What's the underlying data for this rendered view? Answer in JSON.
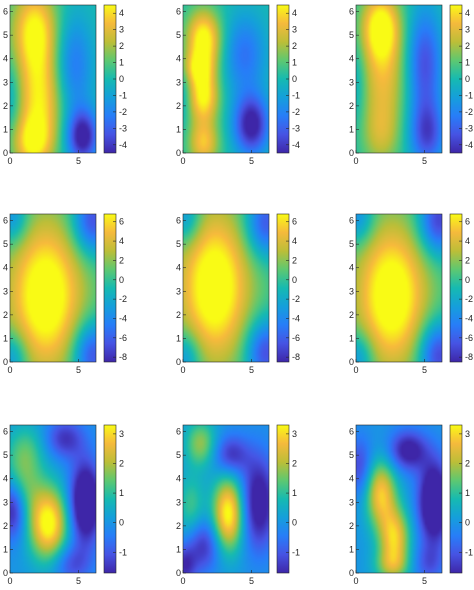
{
  "chart_data": [
    {
      "type": "heatmap",
      "row": 0,
      "col": 0,
      "title": "",
      "xlabel": "",
      "ylabel": "",
      "xlim": [
        0,
        6.28
      ],
      "ylim": [
        0,
        6.28
      ],
      "xticks": [
        "0",
        "5"
      ],
      "yticks": [
        "0",
        "1",
        "2",
        "3",
        "4",
        "5",
        "6"
      ],
      "clim": [
        -4.5,
        4.5
      ],
      "colorbar_ticks": [
        "-4",
        "-3",
        "-2",
        "-1",
        "0",
        "1",
        "2",
        "3",
        "4"
      ],
      "blobs": [
        {
          "x": 1.8,
          "y": 5.2,
          "sx": 1.2,
          "sy": 1.3,
          "a": 4.5
        },
        {
          "x": 2.2,
          "y": 2.2,
          "sx": 1.2,
          "sy": 1.5,
          "a": 4.0
        },
        {
          "x": 1.6,
          "y": 0.4,
          "sx": 1.0,
          "sy": 0.8,
          "a": 3.5
        },
        {
          "x": 5.3,
          "y": 0.7,
          "sx": 0.8,
          "sy": 0.8,
          "a": -5.0
        },
        {
          "x": 4.6,
          "y": 3.7,
          "sx": 1.0,
          "sy": 1.5,
          "a": -2.5
        },
        {
          "x": 0.1,
          "y": 2.4,
          "sx": 0.5,
          "sy": 1.0,
          "a": -1.2
        }
      ]
    },
    {
      "type": "heatmap",
      "row": 0,
      "col": 1,
      "title": "",
      "xlabel": "",
      "ylabel": "",
      "xlim": [
        0,
        6.28
      ],
      "ylim": [
        0,
        6.28
      ],
      "xticks": [
        "0",
        "5"
      ],
      "yticks": [
        "0",
        "1",
        "2",
        "3",
        "4",
        "5",
        "6"
      ],
      "clim": [
        -4.5,
        4.5
      ],
      "colorbar_ticks": [
        "-4",
        "-3",
        "-2",
        "-1",
        "0",
        "1",
        "2",
        "3",
        "4"
      ],
      "blobs": [
        {
          "x": 1.5,
          "y": 4.8,
          "sx": 0.9,
          "sy": 0.9,
          "a": 5.0
        },
        {
          "x": 1.5,
          "y": 2.4,
          "sx": 0.8,
          "sy": 0.8,
          "a": 4.5
        },
        {
          "x": 1.5,
          "y": 0.4,
          "sx": 0.8,
          "sy": 0.7,
          "a": 3.5
        },
        {
          "x": 1.0,
          "y": 3.6,
          "sx": 0.8,
          "sy": 0.5,
          "a": 2.5
        },
        {
          "x": 5.0,
          "y": 1.2,
          "sx": 0.9,
          "sy": 0.9,
          "a": -5.0
        },
        {
          "x": 4.5,
          "y": 4.2,
          "sx": 1.1,
          "sy": 1.2,
          "a": -2.5
        },
        {
          "x": 0.0,
          "y": 2.6,
          "sx": 0.4,
          "sy": 1.0,
          "a": -1.0
        }
      ]
    },
    {
      "type": "heatmap",
      "row": 0,
      "col": 2,
      "title": "",
      "xlabel": "",
      "ylabel": "",
      "xlim": [
        0,
        6.28
      ],
      "ylim": [
        0,
        6.28
      ],
      "xticks": [
        "0",
        "5"
      ],
      "yticks": [
        "0",
        "1",
        "2",
        "3",
        "4",
        "5",
        "6"
      ],
      "clim": [
        -4.5,
        4.5
      ],
      "colorbar_ticks": [
        "-4",
        "-3",
        "-2",
        "-1",
        "0",
        "1",
        "2",
        "3",
        "4"
      ],
      "blobs": [
        {
          "x": 1.8,
          "y": 5.4,
          "sx": 1.0,
          "sy": 1.0,
          "a": 4.5
        },
        {
          "x": 2.0,
          "y": 3.2,
          "sx": 1.2,
          "sy": 1.6,
          "a": 3.0
        },
        {
          "x": 1.8,
          "y": 0.7,
          "sx": 1.0,
          "sy": 1.0,
          "a": 2.0
        },
        {
          "x": 5.0,
          "y": 3.8,
          "sx": 0.9,
          "sy": 1.6,
          "a": -3.5
        },
        {
          "x": 5.2,
          "y": 0.8,
          "sx": 0.9,
          "sy": 1.0,
          "a": -3.5
        },
        {
          "x": 0.1,
          "y": 3.0,
          "sx": 0.5,
          "sy": 1.2,
          "a": -1.0
        }
      ]
    },
    {
      "type": "heatmap",
      "row": 1,
      "col": 0,
      "title": "",
      "xlabel": "",
      "ylabel": "",
      "xlim": [
        0,
        6.28
      ],
      "ylim": [
        0,
        6.28
      ],
      "xticks": [
        "0",
        "5"
      ],
      "yticks": [
        "0",
        "1",
        "2",
        "3",
        "4",
        "5",
        "6"
      ],
      "clim": [
        -8.5,
        6.8
      ],
      "colorbar_ticks": [
        "-8",
        "-6",
        "-4",
        "-2",
        "0",
        "2",
        "4",
        "6"
      ],
      "blobs": [
        {
          "x": 2.6,
          "y": 2.8,
          "sx": 1.9,
          "sy": 2.2,
          "a": 8.5
        },
        {
          "x": 6.0,
          "y": 0.3,
          "sx": 1.0,
          "sy": 1.0,
          "a": -7.0
        },
        {
          "x": 6.0,
          "y": 6.0,
          "sx": 1.0,
          "sy": 1.0,
          "a": -7.0
        },
        {
          "x": 0.2,
          "y": 0.2,
          "sx": 0.8,
          "sy": 0.8,
          "a": -4.0
        },
        {
          "x": 0.2,
          "y": 6.1,
          "sx": 0.8,
          "sy": 0.8,
          "a": -4.0
        }
      ]
    },
    {
      "type": "heatmap",
      "row": 1,
      "col": 1,
      "title": "",
      "xlabel": "",
      "ylabel": "",
      "xlim": [
        0,
        6.28
      ],
      "ylim": [
        0,
        6.28
      ],
      "xticks": [
        "0",
        "5"
      ],
      "yticks": [
        "0",
        "1",
        "2",
        "3",
        "4",
        "5",
        "6"
      ],
      "clim": [
        -8.5,
        6.8
      ],
      "colorbar_ticks": [
        "-8",
        "-6",
        "-4",
        "-2",
        "0",
        "2",
        "4",
        "6"
      ],
      "blobs": [
        {
          "x": 2.3,
          "y": 3.2,
          "sx": 1.8,
          "sy": 2.2,
          "a": 8.5
        },
        {
          "x": 6.0,
          "y": 0.4,
          "sx": 1.0,
          "sy": 1.0,
          "a": -7.0
        },
        {
          "x": 6.0,
          "y": 5.9,
          "sx": 1.0,
          "sy": 1.0,
          "a": -6.5
        },
        {
          "x": 0.2,
          "y": 0.2,
          "sx": 0.8,
          "sy": 0.8,
          "a": -4.0
        },
        {
          "x": 0.2,
          "y": 6.1,
          "sx": 0.8,
          "sy": 0.8,
          "a": -4.0
        }
      ]
    },
    {
      "type": "heatmap",
      "row": 1,
      "col": 2,
      "title": "",
      "xlabel": "",
      "ylabel": "",
      "xlim": [
        0,
        6.28
      ],
      "ylim": [
        0,
        6.28
      ],
      "xticks": [
        "0",
        "5"
      ],
      "yticks": [
        "0",
        "1",
        "2",
        "3",
        "4",
        "5",
        "6"
      ],
      "clim": [
        -8.5,
        6.8
      ],
      "colorbar_ticks": [
        "-8",
        "-6",
        "-4",
        "-2",
        "0",
        "2",
        "4",
        "6"
      ],
      "blobs": [
        {
          "x": 2.6,
          "y": 2.8,
          "sx": 1.8,
          "sy": 2.1,
          "a": 8.5
        },
        {
          "x": 6.0,
          "y": 0.3,
          "sx": 1.0,
          "sy": 1.0,
          "a": -7.5
        },
        {
          "x": 6.0,
          "y": 6.0,
          "sx": 1.0,
          "sy": 1.0,
          "a": -7.5
        },
        {
          "x": 0.2,
          "y": 0.2,
          "sx": 0.8,
          "sy": 0.8,
          "a": -4.0
        },
        {
          "x": 0.2,
          "y": 6.1,
          "sx": 0.8,
          "sy": 0.8,
          "a": -4.0
        }
      ]
    },
    {
      "type": "heatmap",
      "row": 2,
      "col": 0,
      "title": "",
      "xlabel": "",
      "ylabel": "",
      "xlim": [
        0,
        6.28
      ],
      "ylim": [
        0,
        6.28
      ],
      "xticks": [
        "0",
        "5"
      ],
      "yticks": [
        "0",
        "1",
        "2",
        "3",
        "4",
        "5",
        "6"
      ],
      "clim": [
        -1.7,
        3.3
      ],
      "colorbar_ticks": [
        "-1",
        "0",
        "1",
        "2",
        "3"
      ],
      "blobs": [
        {
          "x": 2.8,
          "y": 2.1,
          "sx": 1.0,
          "sy": 1.1,
          "a": 3.5
        },
        {
          "x": 0.8,
          "y": 3.8,
          "sx": 1.0,
          "sy": 1.0,
          "a": 1.5
        },
        {
          "x": 1.2,
          "y": 5.3,
          "sx": 1.0,
          "sy": 0.8,
          "a": 1.0
        },
        {
          "x": 5.5,
          "y": 3.0,
          "sx": 0.8,
          "sy": 1.2,
          "a": -3.0
        },
        {
          "x": 0.2,
          "y": 2.8,
          "sx": 0.7,
          "sy": 0.9,
          "a": -2.2
        },
        {
          "x": 4.0,
          "y": 5.7,
          "sx": 1.0,
          "sy": 0.6,
          "a": -1.5
        },
        {
          "x": 4.5,
          "y": 0.4,
          "sx": 1.0,
          "sy": 0.6,
          "a": -1.2
        }
      ]
    },
    {
      "type": "heatmap",
      "row": 2,
      "col": 1,
      "title": "",
      "xlabel": "",
      "ylabel": "",
      "xlim": [
        0,
        6.28
      ],
      "ylim": [
        0,
        6.28
      ],
      "xticks": [
        "0",
        "5"
      ],
      "yticks": [
        "0",
        "1",
        "2",
        "3",
        "4",
        "5",
        "6"
      ],
      "clim": [
        -1.7,
        3.3
      ],
      "colorbar_ticks": [
        "-1",
        "0",
        "1",
        "2",
        "3"
      ],
      "blobs": [
        {
          "x": 3.3,
          "y": 2.5,
          "sx": 0.8,
          "sy": 1.1,
          "a": 3.5
        },
        {
          "x": 1.3,
          "y": 5.5,
          "sx": 0.8,
          "sy": 0.7,
          "a": 1.8
        },
        {
          "x": 0.6,
          "y": 2.8,
          "sx": 0.7,
          "sy": 1.0,
          "a": 1.2
        },
        {
          "x": 5.5,
          "y": 3.0,
          "sx": 0.9,
          "sy": 1.4,
          "a": -2.2
        },
        {
          "x": 1.5,
          "y": 1.2,
          "sx": 0.9,
          "sy": 0.8,
          "a": -1.6
        },
        {
          "x": 3.5,
          "y": 5.0,
          "sx": 0.9,
          "sy": 0.6,
          "a": -1.6
        },
        {
          "x": 0.1,
          "y": 0.3,
          "sx": 0.6,
          "sy": 0.6,
          "a": -1.5
        }
      ]
    },
    {
      "type": "heatmap",
      "row": 2,
      "col": 2,
      "title": "",
      "xlabel": "",
      "ylabel": "",
      "xlim": [
        0,
        6.28
      ],
      "ylim": [
        0,
        6.28
      ],
      "xticks": [
        "0",
        "5"
      ],
      "yticks": [
        "0",
        "1",
        "2",
        "3",
        "4",
        "5",
        "6"
      ],
      "clim": [
        -1.7,
        3.3
      ],
      "colorbar_ticks": [
        "-1",
        "0",
        "1",
        "2",
        "3"
      ],
      "blobs": [
        {
          "x": 1.8,
          "y": 3.4,
          "sx": 0.8,
          "sy": 1.0,
          "a": 2.8
        },
        {
          "x": 2.8,
          "y": 1.5,
          "sx": 0.8,
          "sy": 0.9,
          "a": 2.8
        },
        {
          "x": 2.6,
          "y": 0.3,
          "sx": 0.9,
          "sy": 0.5,
          "a": 1.5
        },
        {
          "x": 5.7,
          "y": 3.0,
          "sx": 0.8,
          "sy": 1.2,
          "a": -3.0
        },
        {
          "x": 3.8,
          "y": 5.2,
          "sx": 1.0,
          "sy": 0.6,
          "a": -2.0
        },
        {
          "x": 0.3,
          "y": 4.5,
          "sx": 0.7,
          "sy": 0.9,
          "a": -1.3
        },
        {
          "x": 5.3,
          "y": 0.4,
          "sx": 0.8,
          "sy": 0.6,
          "a": -1.0
        }
      ]
    }
  ]
}
